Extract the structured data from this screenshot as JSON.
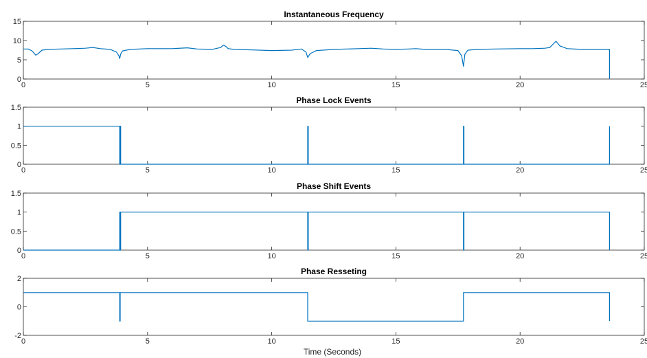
{
  "figure": {
    "xlabel": "Time (Seconds)",
    "line_color": "#0072BD",
    "axis_color": "#262626"
  },
  "chart_data": [
    {
      "type": "line",
      "title": "Instantaneous Frequency",
      "xlim": [
        0,
        25
      ],
      "ylim": [
        0,
        15
      ],
      "xticks": [
        0,
        5,
        10,
        15,
        20,
        25
      ],
      "yticks": [
        0,
        5,
        10,
        15
      ],
      "xtick_labels": [
        "0",
        "5",
        "10",
        "15",
        "20",
        "25"
      ],
      "ytick_labels": [
        "0",
        "5",
        "10",
        "15"
      ],
      "grid": false,
      "series": [
        {
          "x": [
            0,
            0.2,
            0.35,
            0.5,
            0.6,
            0.75,
            1.0,
            1.5,
            2.0,
            2.5,
            2.8,
            3.1,
            3.5,
            3.75,
            3.85,
            3.88,
            3.92,
            4.0,
            4.3,
            5.0,
            6.0,
            6.6,
            7.0,
            7.6,
            7.95,
            8.05,
            8.15,
            8.25,
            8.5,
            9.0,
            10.0,
            10.8,
            11.2,
            11.38,
            11.45,
            11.55,
            11.8,
            12.5,
            13.5,
            14.0,
            14.5,
            15.0,
            15.5,
            15.8,
            16.2,
            17.0,
            17.5,
            17.65,
            17.72,
            17.78,
            17.9,
            18.3,
            19.0,
            20.0,
            20.5,
            21.0,
            21.2,
            21.35,
            21.45,
            21.6,
            21.9,
            22.5,
            23.0,
            23.6,
            23.6
          ],
          "y": [
            7.8,
            7.8,
            7.3,
            6.2,
            6.6,
            7.5,
            7.7,
            7.8,
            7.9,
            8.0,
            8.2,
            7.9,
            7.7,
            7.0,
            6.0,
            5.3,
            6.5,
            7.3,
            7.7,
            7.9,
            7.9,
            8.1,
            7.8,
            7.7,
            8.2,
            8.8,
            8.5,
            7.9,
            7.7,
            7.6,
            7.4,
            7.5,
            7.8,
            7.0,
            5.6,
            6.6,
            7.4,
            7.7,
            7.9,
            8.0,
            7.8,
            7.7,
            7.8,
            7.9,
            7.7,
            7.7,
            7.4,
            6.0,
            3.3,
            6.5,
            7.5,
            7.7,
            7.8,
            7.9,
            7.9,
            8.0,
            8.2,
            9.2,
            9.8,
            8.6,
            7.9,
            7.7,
            7.7,
            7.7,
            0
          ]
        }
      ]
    },
    {
      "type": "line",
      "title": "Phase Lock Events",
      "xlim": [
        0,
        25
      ],
      "ylim": [
        0,
        1.5
      ],
      "xticks": [
        0,
        5,
        10,
        15,
        20,
        25
      ],
      "yticks": [
        0,
        0.5,
        1,
        1.5
      ],
      "xtick_labels": [
        "0",
        "5",
        "10",
        "15",
        "20",
        "25"
      ],
      "ytick_labels": [
        "0",
        "0.5",
        "1",
        "1.5"
      ],
      "grid": false,
      "series": [
        {
          "x": [
            0,
            3.88,
            3.88,
            3.9,
            3.9,
            3.92,
            3.92,
            11.45,
            11.45,
            11.47,
            11.47,
            17.72,
            17.72,
            17.74,
            17.74,
            23.6,
            23.6
          ],
          "y": [
            1,
            1,
            0,
            0,
            1,
            1,
            0,
            0,
            1,
            1,
            0,
            0,
            1,
            1,
            0,
            0,
            1
          ]
        }
      ]
    },
    {
      "type": "line",
      "title": "Phase Shift Events",
      "xlim": [
        0,
        25
      ],
      "ylim": [
        0,
        1.5
      ],
      "xticks": [
        0,
        5,
        10,
        15,
        20,
        25
      ],
      "yticks": [
        0,
        0.5,
        1,
        1.5
      ],
      "xtick_labels": [
        "0",
        "5",
        "10",
        "15",
        "20",
        "25"
      ],
      "ytick_labels": [
        "0",
        "0.5",
        "1",
        "1.5"
      ],
      "grid": false,
      "series": [
        {
          "x": [
            0,
            3.88,
            3.88,
            3.9,
            3.9,
            3.92,
            3.92,
            11.45,
            11.45,
            11.47,
            11.47,
            17.72,
            17.72,
            17.74,
            17.74,
            23.6,
            23.6
          ],
          "y": [
            0,
            0,
            1,
            1,
            0,
            0,
            1,
            1,
            0,
            0,
            1,
            1,
            0,
            0,
            1,
            1,
            0
          ]
        }
      ]
    },
    {
      "type": "line",
      "title": "Phase Resseting",
      "xlim": [
        0,
        25
      ],
      "ylim": [
        -2,
        2
      ],
      "xticks": [
        0,
        5,
        10,
        15,
        20,
        25
      ],
      "yticks": [
        -2,
        0,
        2
      ],
      "xtick_labels": [
        "0",
        "5",
        "10",
        "15",
        "20",
        "25"
      ],
      "ytick_labels": [
        "-2",
        "0",
        "2"
      ],
      "grid": false,
      "series": [
        {
          "x": [
            0,
            3.88,
            3.88,
            3.9,
            3.9,
            11.45,
            11.45,
            17.72,
            17.72,
            23.6,
            23.6
          ],
          "y": [
            1,
            1,
            -1,
            -1,
            1,
            1,
            -1,
            -1,
            1,
            1,
            -1
          ]
        }
      ]
    }
  ]
}
